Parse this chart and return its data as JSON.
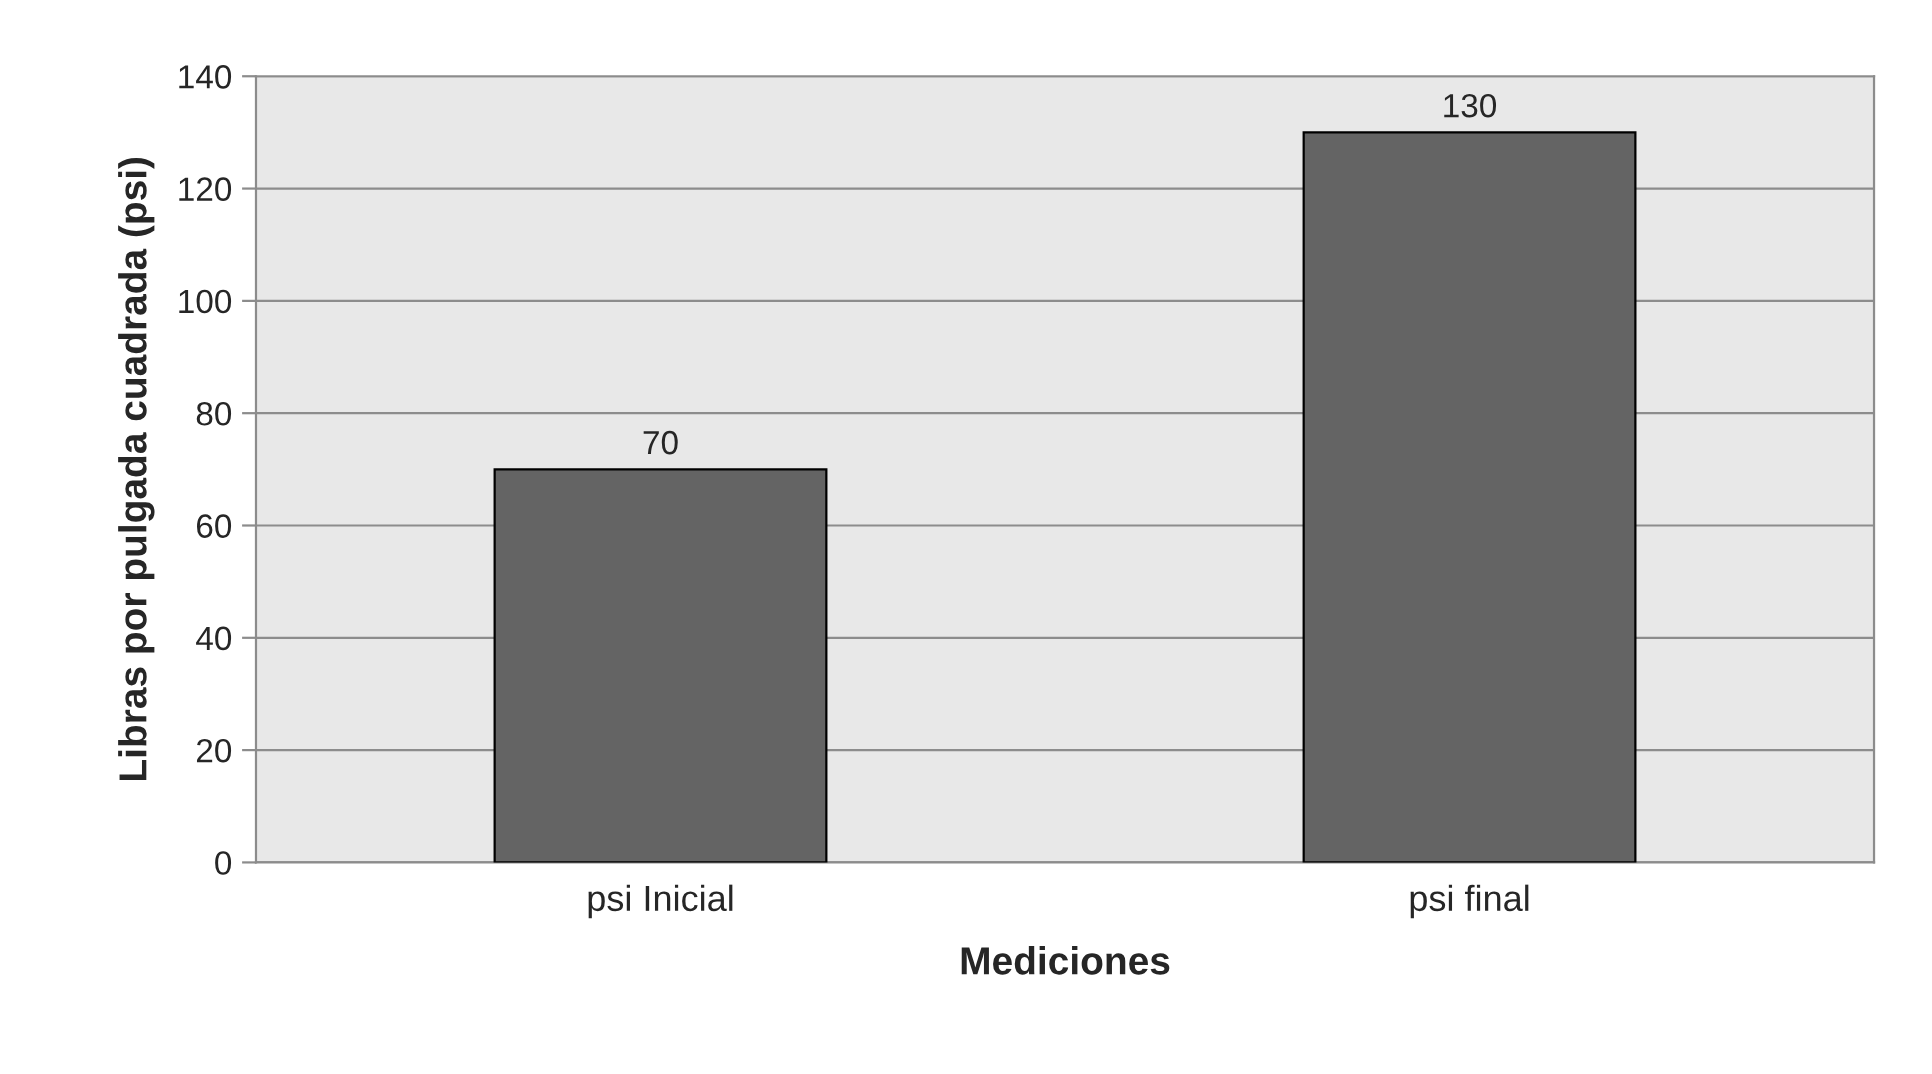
{
  "chart_data": {
    "type": "bar",
    "xlabel": "Mediciones",
    "ylabel": "Libras por pulgada cuadrada (psi)",
    "categories": [
      "psi Inicial",
      "psi final"
    ],
    "values": [
      70,
      130
    ],
    "color": "#646464",
    "ylim": [
      0,
      140
    ],
    "yticks": [
      0,
      20,
      40,
      60,
      80,
      100,
      120,
      140
    ],
    "grid": "y",
    "data_labels": true
  }
}
